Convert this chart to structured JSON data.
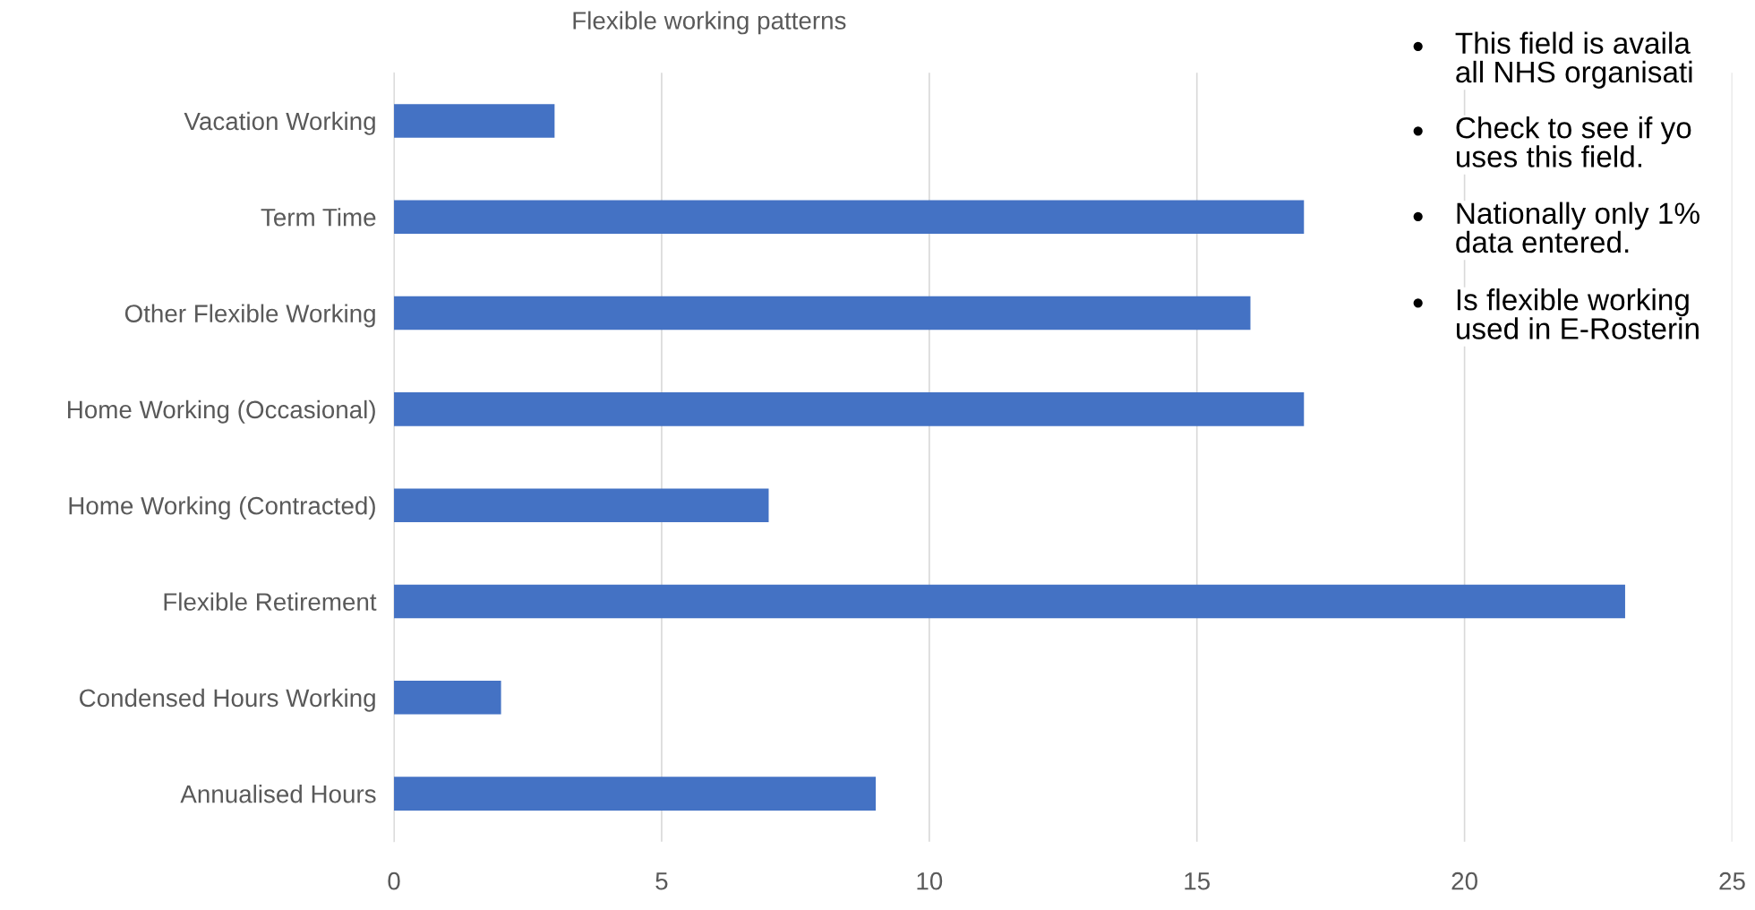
{
  "chart_data": {
    "type": "bar",
    "orientation": "horizontal",
    "title": "Flexible working patterns",
    "categories": [
      "Vacation Working",
      "Term Time",
      "Other Flexible Working",
      "Home Working (Occasional)",
      "Home Working (Contracted)",
      "Flexible Retirement",
      "Condensed Hours Working",
      "Annualised Hours"
    ],
    "values": [
      3,
      17,
      16,
      17,
      7,
      23,
      2,
      9
    ],
    "color": "#4472c4",
    "xlim": [
      0,
      25
    ],
    "xticks": [
      0,
      5,
      10,
      15,
      20,
      25
    ],
    "grid": "x",
    "legend": false,
    "annotations": [
      "This field is availa\nall NHS organisati",
      "Check to see if yo\nuses this field.",
      "Nationally only 1%\ndata entered.",
      "Is flexible working\nused in E-Rosterin"
    ]
  }
}
